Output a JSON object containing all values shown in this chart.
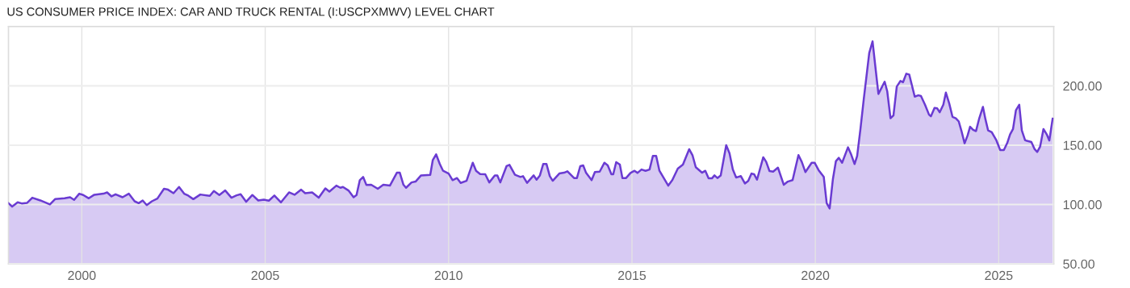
{
  "chart_data": {
    "type": "area",
    "title": "US CONSUMER PRICE INDEX: CAR AND TRUCK RENTAL (I:USCPXMWV) LEVEL CHART",
    "x": [
      1998.0,
      1998.1,
      1998.25,
      1998.36,
      1998.51,
      1998.65,
      1998.87,
      1999.13,
      1999.27,
      1999.53,
      1999.68,
      1999.79,
      1999.93,
      2000.04,
      2000.19,
      2000.34,
      2000.59,
      2000.69,
      2000.81,
      2000.92,
      2001.11,
      2001.28,
      2001.44,
      2001.55,
      2001.66,
      2001.77,
      2001.91,
      2002.06,
      2002.24,
      2002.35,
      2002.5,
      2002.65,
      2002.79,
      2002.9,
      2003.04,
      2003.23,
      2003.49,
      2003.6,
      2003.75,
      2003.91,
      2004.08,
      2004.22,
      2004.33,
      2004.48,
      2004.65,
      2004.81,
      2004.96,
      2005.1,
      2005.25,
      2005.43,
      2005.65,
      2005.8,
      2005.98,
      2006.09,
      2006.28,
      2006.46,
      2006.64,
      2006.75,
      2006.94,
      2007.05,
      2007.12,
      2007.27,
      2007.41,
      2007.49,
      2007.58,
      2007.67,
      2007.76,
      2007.89,
      2008.07,
      2008.22,
      2008.4,
      2008.59,
      2008.67,
      2008.77,
      2008.84,
      2008.99,
      2009.1,
      2009.25,
      2009.5,
      2009.57,
      2009.66,
      2009.76,
      2009.85,
      2010.0,
      2010.11,
      2010.23,
      2010.33,
      2010.49,
      2010.66,
      2010.75,
      2010.86,
      2011.0,
      2011.11,
      2011.26,
      2011.33,
      2011.41,
      2011.58,
      2011.66,
      2011.81,
      2011.96,
      2012.03,
      2012.14,
      2012.32,
      2012.4,
      2012.49,
      2012.58,
      2012.67,
      2012.76,
      2012.84,
      2013.02,
      2013.15,
      2013.24,
      2013.42,
      2013.5,
      2013.59,
      2013.67,
      2013.75,
      2013.9,
      2013.99,
      2014.12,
      2014.25,
      2014.34,
      2014.44,
      2014.49,
      2014.57,
      2014.67,
      2014.74,
      2014.84,
      2014.96,
      2015.07,
      2015.15,
      2015.26,
      2015.37,
      2015.48,
      2015.57,
      2015.66,
      2015.75,
      2015.99,
      2016.1,
      2016.25,
      2016.39,
      2016.56,
      2016.65,
      2016.74,
      2016.91,
      2017.0,
      2017.09,
      2017.18,
      2017.25,
      2017.33,
      2017.42,
      2017.57,
      2017.66,
      2017.75,
      2017.84,
      2017.97,
      2018.08,
      2018.17,
      2018.26,
      2018.33,
      2018.41,
      2018.58,
      2018.66,
      2018.75,
      2018.85,
      2018.98,
      2019.14,
      2019.25,
      2019.38,
      2019.54,
      2019.63,
      2019.73,
      2019.9,
      2019.98,
      2020.09,
      2020.23,
      2020.31,
      2020.39,
      2020.48,
      2020.56,
      2020.64,
      2020.73,
      2020.89,
      2020.97,
      2021.07,
      2021.14,
      2021.23,
      2021.32,
      2021.47,
      2021.56,
      2021.65,
      2021.72,
      2021.89,
      2021.96,
      2022.05,
      2022.13,
      2022.22,
      2022.32,
      2022.39,
      2022.48,
      2022.56,
      2022.71,
      2022.81,
      2022.88,
      2022.99,
      2023.1,
      2023.15,
      2023.25,
      2023.32,
      2023.39,
      2023.49,
      2023.56,
      2023.65,
      2023.74,
      2023.83,
      2023.91,
      2023.98,
      2024.07,
      2024.15,
      2024.22,
      2024.3,
      2024.38,
      2024.47,
      2024.57,
      2024.64,
      2024.71,
      2024.81,
      2024.93,
      2025.04,
      2025.14,
      2025.23,
      2025.31,
      2025.39,
      2025.47,
      2025.56,
      2025.63,
      2025.72,
      2025.89,
      2025.98,
      2026.05,
      2026.13,
      2026.22,
      2026.31,
      2026.38,
      2026.47
    ],
    "series": [
      {
        "color": "#6a3bd2",
        "values": [
          101.1,
          98.2,
          101.8,
          100.9,
          101.4,
          105.7,
          103.4,
          100.0,
          104.5,
          105.2,
          106.1,
          103.9,
          109.1,
          108.0,
          105.2,
          108.2,
          109.1,
          110.2,
          106.8,
          108.6,
          106.1,
          109.1,
          102.7,
          101.1,
          103.4,
          99.5,
          102.7,
          105.0,
          113.2,
          112.5,
          109.5,
          114.8,
          109.1,
          107.5,
          104.5,
          108.4,
          107.3,
          111.4,
          108.0,
          111.8,
          105.7,
          107.7,
          108.6,
          102.3,
          108.0,
          103.4,
          104.1,
          103.2,
          107.5,
          101.8,
          110.2,
          108.2,
          112.5,
          109.5,
          110.2,
          105.7,
          113.6,
          110.9,
          115.9,
          114.1,
          114.8,
          111.8,
          106.1,
          108.0,
          120.5,
          123.2,
          116.4,
          116.6,
          113.2,
          116.6,
          115.9,
          126.8,
          126.8,
          116.6,
          114.1,
          118.6,
          119.3,
          124.5,
          125.0,
          137.5,
          142.3,
          134.1,
          128.4,
          126.1,
          120.5,
          122.3,
          118.2,
          120.0,
          135.2,
          128.4,
          125.7,
          125.5,
          118.6,
          124.5,
          124.5,
          118.6,
          132.3,
          133.4,
          125.0,
          123.2,
          123.9,
          118.2,
          124.5,
          120.9,
          124.5,
          134.1,
          134.1,
          123.9,
          120.0,
          126.1,
          126.8,
          128.0,
          122.3,
          122.3,
          132.3,
          133.0,
          126.6,
          120.5,
          127.3,
          127.7,
          135.2,
          133.0,
          125.5,
          125.5,
          135.7,
          133.6,
          122.3,
          122.3,
          126.6,
          128.4,
          126.6,
          129.5,
          128.4,
          129.5,
          140.9,
          140.9,
          128.4,
          115.9,
          120.5,
          130.2,
          133.6,
          146.6,
          141.6,
          131.4,
          126.8,
          128.4,
          122.0,
          122.0,
          124.5,
          122.3,
          124.5,
          150.0,
          143.2,
          129.5,
          122.7,
          123.9,
          117.7,
          119.8,
          126.1,
          125.5,
          120.9,
          139.8,
          135.9,
          128.2,
          127.7,
          131.1,
          116.6,
          119.3,
          120.5,
          141.6,
          135.9,
          127.3,
          135.2,
          135.2,
          128.9,
          123.2,
          101.1,
          96.6,
          121.6,
          136.4,
          139.3,
          135.2,
          148.2,
          142.7,
          134.1,
          140.9,
          163.6,
          188.6,
          227.7,
          237.5,
          212.5,
          193.2,
          203.4,
          195.5,
          172.7,
          175.0,
          199.3,
          204.1,
          203.0,
          210.2,
          209.5,
          190.9,
          192.0,
          191.4,
          184.1,
          175.7,
          174.3,
          181.4,
          181.1,
          177.7,
          184.1,
          194.3,
          185.2,
          173.9,
          172.7,
          170.0,
          162.5,
          151.6,
          158.0,
          165.5,
          163.0,
          161.8,
          172.7,
          182.3,
          171.6,
          162.5,
          160.9,
          154.5,
          145.9,
          145.9,
          151.6,
          159.1,
          163.6,
          179.5,
          184.1,
          162.5,
          154.1,
          152.7,
          146.6,
          144.3,
          148.9,
          163.6,
          159.1,
          153.9,
          172.3
        ]
      }
    ],
    "xlim": [
      1998.0,
      2026.5
    ],
    "xticks": [
      2000,
      2005,
      2010,
      2015,
      2020,
      2025
    ],
    "ylim": [
      50,
      250
    ],
    "yticks": [
      {
        "value": 50,
        "label": "50.00"
      },
      {
        "value": 100,
        "label": "100.00"
      },
      {
        "value": 150,
        "label": "150.00"
      },
      {
        "value": 200,
        "label": "200.00"
      }
    ],
    "grid": true
  }
}
